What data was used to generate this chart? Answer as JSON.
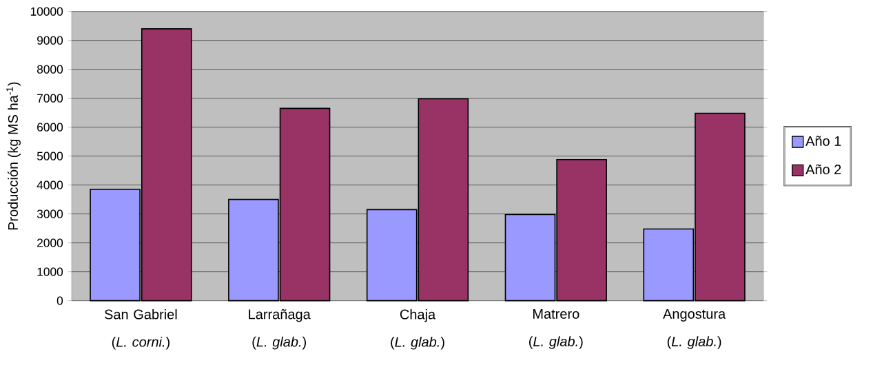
{
  "chart_data": {
    "type": "bar",
    "ylabel": "Producción (kg MS ha$^{-1}$)",
    "categories": [
      "San Gabriel\n(*L. corni.*)",
      "Larrañaga\n(*L. glab.*)",
      "Chaja\n(*L. glab.*)",
      "Matrero\n(*L. glab.*)",
      "Angostura\n(*L. glab.*)"
    ],
    "series": [
      {
        "name": "Año 1",
        "color": "#9999ff",
        "values": [
          3850,
          3500,
          3150,
          2980,
          2480
        ]
      },
      {
        "name": "Año 2",
        "color": "#993366",
        "values": [
          9400,
          6650,
          6980,
          4880,
          6480
        ]
      }
    ],
    "ylim": [
      0,
      10000
    ],
    "yticks": [
      0,
      1000,
      2000,
      3000,
      4000,
      5000,
      6000,
      7000,
      8000,
      9000,
      10000
    ],
    "grid": "y",
    "legend": "right"
  }
}
